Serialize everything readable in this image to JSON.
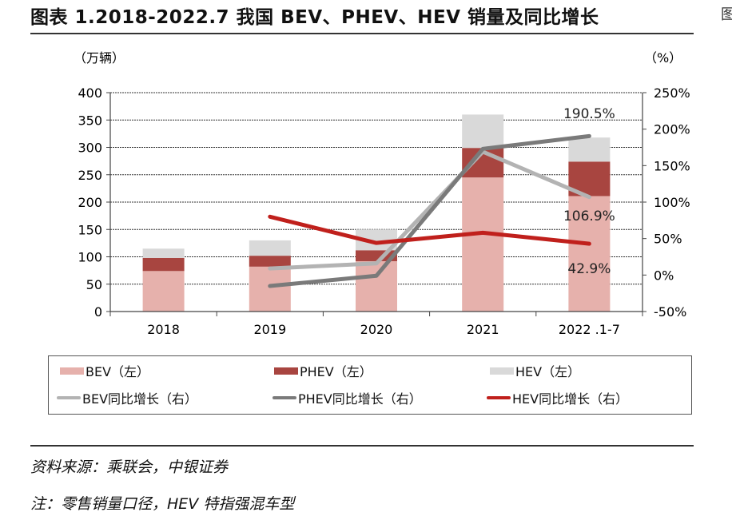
{
  "header": {
    "title": "图表 1.2018-2022.7 我国 BEV、PHEV、HEV 销量及同比增长",
    "edge_fragment": "图"
  },
  "footer": {
    "source": "资料来源：乘联会，中银证券",
    "note": "注：零售销量口径，HEV 特指强混车型"
  },
  "chart_data": {
    "type": "bar+line",
    "title": "",
    "ylabel": "（万辆）",
    "y2label": "（%）",
    "ylim": [
      0,
      400
    ],
    "yticks": [
      0,
      50,
      100,
      150,
      200,
      250,
      300,
      350,
      400
    ],
    "y2lim": [
      -50,
      250
    ],
    "y2ticks": [
      "-50%",
      "0%",
      "50%",
      "100%",
      "150%",
      "200%",
      "250%"
    ],
    "y2tickvalues": [
      -50,
      0,
      50,
      100,
      150,
      200,
      250
    ],
    "categories": [
      "2018",
      "2019",
      "2020",
      "2021",
      "2022 .1-7"
    ],
    "grid": true,
    "legend_placement": "bottom",
    "bar_series": [
      {
        "name": "BEV（左）",
        "color": "#e6b1ac",
        "values": [
          74,
          82,
          92,
          245,
          211
        ]
      },
      {
        "name": "PHEV（左）",
        "color": "#a84540",
        "values": [
          24,
          20,
          20,
          54,
          63
        ]
      },
      {
        "name": "HEV（左）",
        "color": "#d9d9d9",
        "values": [
          17,
          28,
          38,
          61,
          44
        ]
      }
    ],
    "line_series": [
      {
        "name": "BEV同比增长（右）",
        "color": "#b3b3b3",
        "values": [
          null,
          9,
          16,
          169,
          106.9
        ]
      },
      {
        "name": "PHEV同比增长（右）",
        "color": "#7a7a7a",
        "values": [
          null,
          -15,
          -1,
          173,
          190.5
        ]
      },
      {
        "name": "HEV同比增长（右）",
        "color": "#c0201c",
        "values": [
          null,
          80,
          44,
          58,
          42.9
        ]
      }
    ],
    "annotations": [
      "190.5%",
      "106.9%",
      "42.9%"
    ]
  }
}
